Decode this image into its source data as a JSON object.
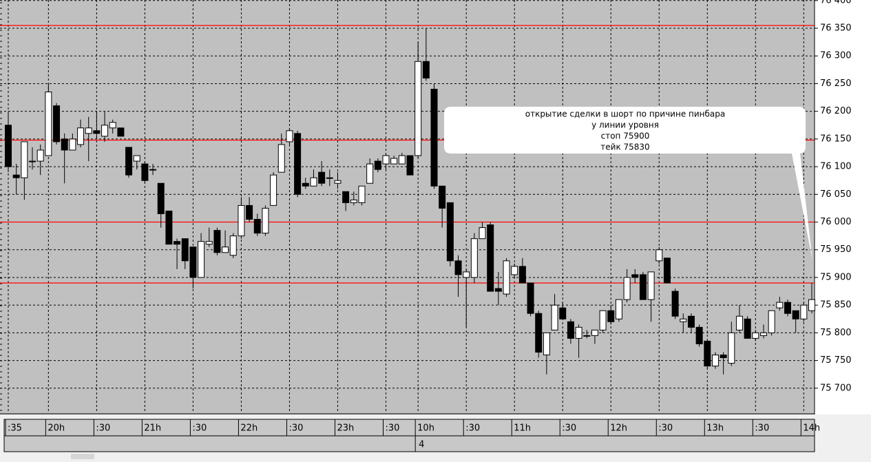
{
  "chart_data": {
    "type": "candlestick",
    "categories": [
      ":35",
      null,
      null,
      null,
      null,
      "20h",
      null,
      null,
      null,
      null,
      null,
      ":30",
      null,
      null,
      null,
      null,
      null,
      "21h",
      null,
      null,
      null,
      null,
      null,
      ":30",
      null,
      null,
      null,
      null,
      null,
      "22h",
      null,
      null,
      null,
      null,
      null,
      ":30",
      null,
      null,
      null,
      null,
      null,
      "23h",
      null,
      null,
      null,
      null,
      null,
      ":30",
      null,
      null,
      null,
      "10h",
      null,
      null,
      null,
      null,
      null,
      ":30",
      null,
      null,
      null,
      null,
      null,
      "11h",
      null,
      null,
      null,
      null,
      null,
      ":30",
      null,
      null,
      null,
      null,
      null,
      "12h",
      null,
      null,
      null,
      null,
      null,
      ":30",
      null,
      null,
      null,
      null,
      null,
      "13h",
      null,
      null,
      null,
      null,
      null,
      ":30",
      null,
      null,
      null,
      null,
      null,
      "14h",
      null
    ],
    "dates": [
      null,
      null,
      null,
      null,
      null,
      null,
      null,
      null,
      null,
      null,
      null,
      null,
      null,
      null,
      null,
      null,
      null,
      null,
      null,
      null,
      null,
      null,
      null,
      null,
      null,
      null,
      null,
      null,
      null,
      null,
      null,
      null,
      null,
      null,
      null,
      null,
      null,
      null,
      null,
      null,
      null,
      null,
      null,
      null,
      null,
      null,
      null,
      null,
      null,
      null,
      null,
      "4",
      null,
      null,
      null,
      null,
      null,
      null,
      null,
      null,
      null,
      null,
      null,
      null,
      null,
      null,
      null,
      null,
      null,
      null,
      null,
      null,
      null,
      null,
      null,
      null,
      null,
      null,
      null,
      null,
      null,
      null,
      null,
      null,
      null,
      null,
      null,
      null,
      null,
      null,
      null,
      null,
      null,
      null,
      null,
      null,
      null,
      null,
      null,
      null,
      null
    ],
    "open": [
      76175,
      76085,
      76080,
      76110,
      76110,
      76120,
      76210,
      76150,
      76130,
      76140,
      76160,
      76165,
      76155,
      76170,
      76170,
      76135,
      76110,
      76105,
      76095,
      76070,
      76020,
      75965,
      75970,
      75955,
      75900,
      75960,
      75985,
      75945,
      75940,
      75975,
      76030,
      76005,
      75980,
      76030,
      76090,
      76145,
      76160,
      76070,
      76065,
      76090,
      76080,
      76070,
      76055,
      76035,
      76035,
      76070,
      76110,
      76105,
      76105,
      76105,
      76120,
      76120,
      76290,
      76240,
      76065,
      76035,
      75930,
      75900,
      75900,
      75970,
      75995,
      75880,
      75870,
      75905,
      75920,
      75890,
      75835,
      75760,
      75805,
      75845,
      75820,
      75790,
      75795,
      75795,
      75805,
      75840,
      75825,
      75860,
      75905,
      75905,
      75860,
      75930,
      75935,
      75875,
      75820,
      75830,
      75810,
      75785,
      75740,
      75760,
      75745,
      75805,
      75825,
      75790,
      75795,
      75800,
      75845,
      75855,
      75840,
      75825,
      75840
    ],
    "high": [
      76200,
      76105,
      76145,
      76135,
      76140,
      76250,
      76215,
      76160,
      76160,
      76185,
      76190,
      76200,
      76200,
      76185,
      76170,
      76135,
      76120,
      76110,
      76105,
      76070,
      76020,
      75970,
      75970,
      75955,
      75980,
      75990,
      75990,
      75985,
      75980,
      76045,
      76045,
      76015,
      76030,
      76090,
      76160,
      76170,
      76165,
      76080,
      76095,
      76110,
      76095,
      76090,
      76055,
      76055,
      76065,
      76115,
      76115,
      76125,
      76120,
      76125,
      76120,
      76325,
      76350,
      76250,
      76065,
      76035,
      75940,
      75915,
      75980,
      76000,
      76000,
      75910,
      75935,
      75925,
      75935,
      75890,
      75840,
      75800,
      75870,
      75855,
      75825,
      75815,
      75805,
      75805,
      75840,
      75850,
      75860,
      75915,
      75915,
      75910,
      75910,
      75955,
      75935,
      75880,
      75835,
      75835,
      75815,
      75785,
      75765,
      75765,
      75820,
      75850,
      75830,
      75805,
      75815,
      75840,
      75865,
      75860,
      75840,
      75855,
      75890
    ],
    "low": [
      76090,
      76050,
      76040,
      76095,
      76085,
      76120,
      76140,
      76070,
      76130,
      76135,
      76110,
      76150,
      76145,
      76160,
      76155,
      76080,
      76095,
      76070,
      76085,
      75990,
      75960,
      75915,
      75915,
      75880,
      75900,
      75955,
      75940,
      75945,
      75935,
      75970,
      76000,
      75975,
      75975,
      76030,
      76090,
      76140,
      76045,
      76060,
      76065,
      76065,
      76065,
      76060,
      76020,
      76030,
      76030,
      76070,
      76090,
      76095,
      76105,
      76105,
      76085,
      76115,
      76255,
      76060,
      75990,
      75920,
      75865,
      75810,
      75890,
      75970,
      75875,
      75850,
      75865,
      75900,
      75890,
      75830,
      75755,
      75725,
      75805,
      75825,
      75780,
      75755,
      75790,
      75780,
      75800,
      75815,
      75820,
      75855,
      75890,
      75860,
      75820,
      75925,
      75890,
      75825,
      75800,
      75800,
      75775,
      75735,
      75735,
      75725,
      75740,
      75800,
      75790,
      75785,
      75790,
      75795,
      75840,
      75830,
      75800,
      75820,
      75835
    ],
    "close": [
      76100,
      76080,
      76145,
      76110,
      76130,
      76235,
      76145,
      76130,
      76150,
      76170,
      76170,
      76160,
      76175,
      76180,
      76155,
      76085,
      76120,
      76075,
      76095,
      76015,
      75960,
      75960,
      75930,
      75900,
      75965,
      75965,
      75945,
      75955,
      75975,
      76030,
      76005,
      75980,
      76025,
      76085,
      76140,
      76165,
      76050,
      76065,
      76080,
      76070,
      76080,
      76075,
      76035,
      76040,
      76065,
      76105,
      76095,
      76120,
      76115,
      76120,
      76085,
      76290,
      76260,
      76065,
      76025,
      75930,
      75905,
      75910,
      75970,
      75990,
      75875,
      75875,
      75930,
      75920,
      75890,
      75835,
      75765,
      75800,
      75850,
      75825,
      75790,
      75810,
      75795,
      75805,
      75840,
      75820,
      75860,
      75900,
      75900,
      75860,
      75910,
      75950,
      75890,
      75830,
      75825,
      75810,
      75780,
      75740,
      75760,
      75755,
      75800,
      75830,
      75790,
      75800,
      75800,
      75840,
      75855,
      75835,
      75825,
      75850,
      75860
    ],
    "up_color": "#ffffff",
    "down_color": "#000000",
    "ylim": [
      75655,
      76401
    ],
    "yticks": [
      {
        "value": 75700,
        "label": "75 700"
      },
      {
        "value": 75750,
        "label": "75 750"
      },
      {
        "value": 75800,
        "label": "75 800"
      },
      {
        "value": 75850,
        "label": "75 850"
      },
      {
        "value": 75900,
        "label": "75 900"
      },
      {
        "value": 75950,
        "label": "75 950"
      },
      {
        "value": 76000,
        "label": "76 000"
      },
      {
        "value": 76050,
        "label": "76 050"
      },
      {
        "value": 76100,
        "label": "76 100"
      },
      {
        "value": 76150,
        "label": "76 150"
      },
      {
        "value": 76200,
        "label": "76 200"
      },
      {
        "value": 76250,
        "label": "76 250"
      },
      {
        "value": 76300,
        "label": "76 300"
      },
      {
        "value": 76350,
        "label": "76 350"
      },
      {
        "value": 76400,
        "label": "76 400"
      }
    ],
    "grid": true,
    "levels": [
      76355,
      76148,
      76000,
      75890
    ],
    "level_color": "#ff0000",
    "annotation": [
      "открытие сделки в шорт по причине пинбара",
      "у линии уровня",
      "стоп  75900",
      "тейк 75830"
    ]
  }
}
